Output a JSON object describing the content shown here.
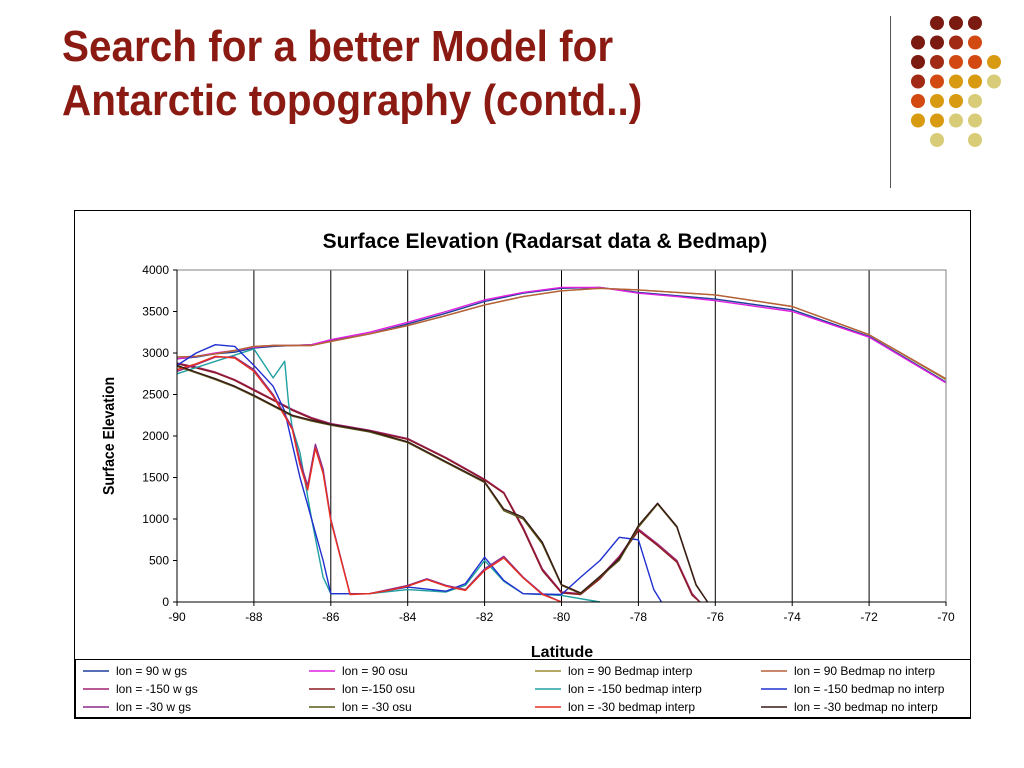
{
  "slide": {
    "title": "Search for a better Model for Antarctic topography (contd..)"
  },
  "decor": {
    "dot_colors": [
      "#7a1a10",
      "#a02a14",
      "#d24a12",
      "#d89a10",
      "#d8cc78"
    ]
  },
  "chart_data": {
    "type": "line",
    "title": "Surface Elevation (Radarsat data & Bedmap)",
    "xlabel": "Latitude",
    "ylabel": "Surface Elevation",
    "xlim": [
      -90,
      -70
    ],
    "ylim": [
      0,
      4000
    ],
    "x_ticks": [
      -90,
      -88,
      -86,
      -84,
      -82,
      -80,
      -78,
      -76,
      -74,
      -72,
      -70
    ],
    "y_ticks": [
      0,
      500,
      1000,
      1500,
      2000,
      2500,
      3000,
      3500,
      4000
    ],
    "vertical_gridlines": [
      -88,
      -86,
      -84,
      -82,
      -80,
      -78,
      -76,
      -74,
      -72
    ],
    "horizontal_gridlines": false,
    "legend_position": "bottom",
    "series": [
      {
        "name": "lon = 90 w gs",
        "color": "#1f3f9a",
        "x": [
          -90,
          -89.5,
          -89,
          -88.5,
          -88,
          -87.5,
          -87,
          -86.5,
          -86,
          -85,
          -84,
          -83,
          -82,
          -81,
          -80,
          -79,
          -78,
          -77,
          -76,
          -74,
          -72,
          -70
        ],
        "y": [
          2930,
          2950,
          2990,
          3010,
          3060,
          3080,
          3090,
          3100,
          3150,
          3230,
          3350,
          3480,
          3620,
          3720,
          3780,
          3790,
          3730,
          3690,
          3650,
          3520,
          3200,
          2650
        ]
      },
      {
        "name": "lon = 90 osu",
        "color": "#e020e0",
        "x": [
          -90,
          -89.5,
          -89,
          -88.5,
          -88,
          -87.5,
          -87,
          -86.5,
          -86,
          -85,
          -84,
          -83,
          -82,
          -81,
          -80,
          -79,
          -78,
          -77,
          -76,
          -74,
          -72,
          -70
        ],
        "y": [
          2930,
          2960,
          3000,
          3030,
          3070,
          3090,
          3090,
          3100,
          3160,
          3250,
          3370,
          3500,
          3640,
          3730,
          3790,
          3790,
          3720,
          3680,
          3630,
          3500,
          3190,
          2640
        ]
      },
      {
        "name": "lon = 90 Bedmap interp",
        "color": "#9a8a30",
        "x": [
          -90,
          -89.5,
          -89,
          -88.5,
          -88,
          -87.5,
          -87,
          -86.5,
          -86,
          -85,
          -84,
          -83,
          -82,
          -81,
          -80,
          -79,
          -78,
          -77,
          -76,
          -74,
          -72,
          -70
        ],
        "y": [
          2950,
          2960,
          2990,
          3030,
          3080,
          3090,
          3090,
          3090,
          3140,
          3230,
          3330,
          3450,
          3580,
          3680,
          3750,
          3780,
          3760,
          3730,
          3700,
          3560,
          3220,
          2680
        ]
      },
      {
        "name": "lon = 90 Bedmap no interp",
        "color": "#b8603a",
        "x": [
          -90,
          -89.5,
          -89,
          -88.5,
          -88,
          -87.5,
          -87,
          -86.5,
          -86,
          -85,
          -84,
          -83,
          -82,
          -81,
          -80,
          -79,
          -78,
          -77,
          -76,
          -74,
          -72,
          -70
        ],
        "y": [
          2950,
          2960,
          2990,
          3030,
          3080,
          3090,
          3090,
          3090,
          3140,
          3230,
          3330,
          3450,
          3580,
          3680,
          3750,
          3780,
          3760,
          3730,
          3700,
          3560,
          3220,
          2690
        ]
      },
      {
        "name": "lon = -150 w gs",
        "color": "#a02070",
        "x": [
          -90,
          -89.5,
          -89,
          -88.5,
          -88,
          -87.5,
          -87,
          -86.5,
          -86,
          -85,
          -84,
          -83,
          -82,
          -81.5,
          -81,
          -80.5,
          -80,
          -79.5,
          -79,
          -78.5,
          -78,
          -77.5,
          -77,
          -76.6,
          -76.4
        ],
        "y": [
          2880,
          2830,
          2770,
          2680,
          2560,
          2440,
          2320,
          2220,
          2150,
          2070,
          1970,
          1740,
          1480,
          1320,
          900,
          400,
          120,
          100,
          300,
          550,
          880,
          700,
          500,
          100,
          0
        ]
      },
      {
        "name": "lon =-150 osu",
        "color": "#8b1a20",
        "x": [
          -90,
          -89.5,
          -89,
          -88.5,
          -88,
          -87.5,
          -87,
          -86.5,
          -86,
          -85,
          -84,
          -83,
          -82,
          -81.5,
          -81,
          -80.5,
          -80,
          -79.5,
          -79,
          -78.5,
          -78,
          -77.5,
          -77,
          -76.6,
          -76.4
        ],
        "y": [
          2870,
          2820,
          2760,
          2670,
          2550,
          2430,
          2310,
          2210,
          2140,
          2060,
          1960,
          1730,
          1470,
          1310,
          880,
          380,
          110,
          90,
          280,
          530,
          860,
          680,
          480,
          80,
          0
        ]
      },
      {
        "name": "lon = -150 bedmap interp",
        "color": "#20a0a0",
        "x": [
          -90,
          -89,
          -88,
          -87.5,
          -87.2,
          -87.1,
          -87,
          -86.8,
          -86.5,
          -86.2,
          -86,
          -85.5,
          -85,
          -84,
          -83,
          -82.5,
          -82,
          -81.5,
          -81,
          -80,
          -79
        ],
        "y": [
          2750,
          2900,
          3050,
          2700,
          2900,
          2400,
          2100,
          1800,
          1000,
          300,
          100,
          100,
          100,
          150,
          120,
          200,
          500,
          250,
          100,
          80,
          0
        ]
      },
      {
        "name": "lon = -150 bedmap no interp",
        "color": "#2030d0",
        "x": [
          -90,
          -89.5,
          -89,
          -88.5,
          -88,
          -87.5,
          -87.2,
          -87,
          -86.8,
          -86.5,
          -86.2,
          -86,
          -85.5,
          -85,
          -84,
          -83,
          -82.5,
          -82,
          -81.5,
          -81,
          -80,
          -79.5,
          -79,
          -78.5,
          -78,
          -77.6,
          -77.4
        ],
        "y": [
          2850,
          3000,
          3100,
          3080,
          2850,
          2600,
          2300,
          1900,
          1500,
          1000,
          500,
          100,
          100,
          100,
          180,
          130,
          220,
          540,
          260,
          100,
          90,
          300,
          500,
          780,
          750,
          150,
          0
        ]
      },
      {
        "name": "lon = -30 w gs",
        "color": "#8b2a8b",
        "x": [
          -90,
          -89.5,
          -89,
          -88.5,
          -88,
          -87.5,
          -87,
          -86.8,
          -86.6,
          -86.4,
          -86.2,
          -86,
          -85.5,
          -85,
          -84.5,
          -84,
          -83.5,
          -83,
          -82.5,
          -82,
          -81.5,
          -81,
          -80.5,
          -80
        ],
        "y": [
          2780,
          2860,
          2950,
          2950,
          2800,
          2500,
          2100,
          1700,
          1400,
          1900,
          1600,
          1000,
          100,
          100,
          150,
          200,
          280,
          200,
          150,
          400,
          550,
          300,
          100,
          0
        ]
      },
      {
        "name": "lon = -30 osu",
        "color": "#5a5a18",
        "x": [
          -90,
          -89.5,
          -89,
          -88.5,
          -88,
          -87.5,
          -87,
          -86.5,
          -86,
          -85,
          -84,
          -83,
          -82,
          -81.5,
          -81,
          -80.5,
          -80,
          -79.5,
          -79,
          -78.5,
          -78,
          -77.5,
          -77,
          -76.5,
          -76.2
        ],
        "y": [
          2840,
          2760,
          2680,
          2590,
          2480,
          2360,
          2240,
          2180,
          2130,
          2050,
          1920,
          1680,
          1440,
          1100,
          1000,
          700,
          200,
          100,
          300,
          500,
          900,
          1180,
          900,
          200,
          0
        ]
      },
      {
        "name": "lon = -30 bedmap interp",
        "color": "#e83020",
        "x": [
          -90,
          -89.5,
          -89,
          -88.5,
          -88,
          -87.5,
          -87,
          -86.8,
          -86.6,
          -86.4,
          -86.2,
          -86,
          -85.5,
          -85,
          -84.5,
          -84,
          -83.5,
          -83,
          -82.5,
          -82,
          -81.5,
          -81,
          -80.5,
          -80
        ],
        "y": [
          2800,
          2870,
          2960,
          2940,
          2780,
          2480,
          2080,
          1650,
          1350,
          1850,
          1550,
          980,
          90,
          100,
          140,
          190,
          270,
          190,
          140,
          380,
          530,
          290,
          90,
          0
        ]
      },
      {
        "name": "lon = -30 bedmap no interp",
        "color": "#3a1a18",
        "x": [
          -90,
          -89.5,
          -89,
          -88.5,
          -88,
          -87.5,
          -87,
          -86.5,
          -86,
          -85,
          -84,
          -83,
          -82,
          -81.5,
          -81,
          -80.5,
          -80,
          -79.5,
          -79,
          -78.5,
          -78,
          -77.5,
          -77,
          -76.5,
          -76.2
        ],
        "y": [
          2850,
          2770,
          2690,
          2600,
          2490,
          2370,
          2250,
          2190,
          2140,
          2060,
          1930,
          1690,
          1450,
          1120,
          1020,
          720,
          210,
          110,
          310,
          520,
          920,
          1190,
          910,
          210,
          0
        ]
      }
    ]
  }
}
